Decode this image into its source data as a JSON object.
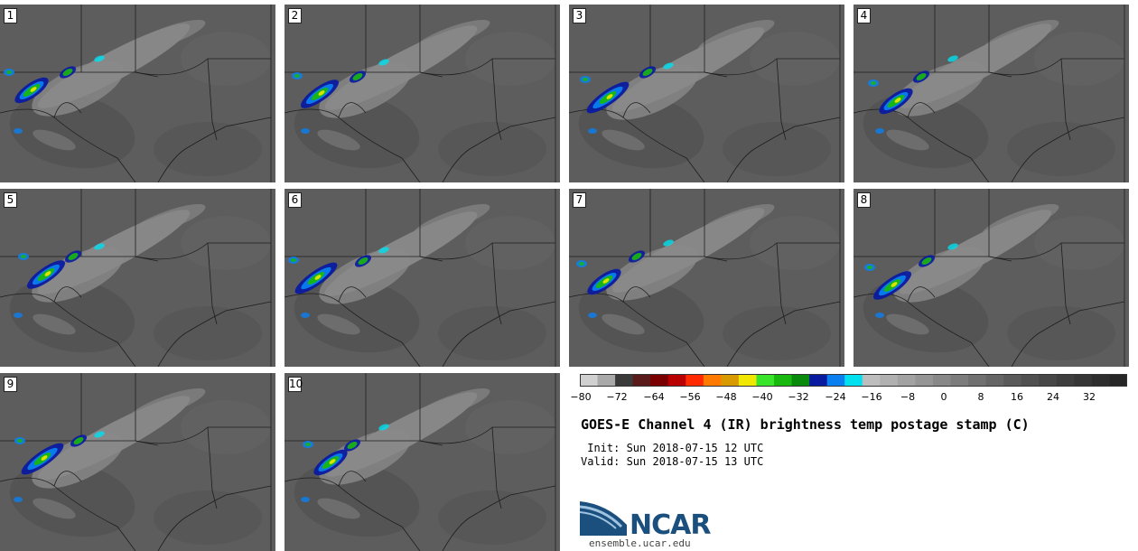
{
  "panels": [
    {
      "label": "1"
    },
    {
      "label": "2"
    },
    {
      "label": "3"
    },
    {
      "label": "4"
    },
    {
      "label": "5"
    },
    {
      "label": "6"
    },
    {
      "label": "7"
    },
    {
      "label": "8"
    },
    {
      "label": "9"
    },
    {
      "label": "10"
    }
  ],
  "colorbar": {
    "colors": [
      "#d0d0d0",
      "#a9a9a9",
      "#3a3a3a",
      "#5a1a1a",
      "#7a0000",
      "#b80000",
      "#ff2a00",
      "#ff7a00",
      "#d89a00",
      "#f0e800",
      "#39e52b",
      "#19b80f",
      "#0a8a0a",
      "#0a1aa0",
      "#0a80f0",
      "#00e0ee",
      "#bdbdbd",
      "#b0b0b0",
      "#a2a2a2",
      "#959595",
      "#888888",
      "#7c7c7c",
      "#707070",
      "#656565",
      "#5a5a5a",
      "#505050",
      "#474747",
      "#3e3e3e",
      "#363636",
      "#2e2e2e",
      "#262626"
    ],
    "ticks": [
      "−80",
      "−72",
      "−64",
      "−56",
      "−48",
      "−40",
      "−32",
      "−24",
      "−16",
      "−8",
      "0",
      "8",
      "16",
      "24",
      "32"
    ]
  },
  "title": "GOES-E Channel 4 (IR) brightness temp postage stamp (C)",
  "init_line": " Init: Sun 2018-07-15 12 UTC",
  "valid_line": "Valid: Sun 2018-07-15 13 UTC",
  "logo": {
    "wordmark": "NCAR",
    "url": "ensemble.ucar.edu",
    "colors": {
      "blue": "#1a4f7e",
      "light": "#9fc3e0"
    }
  }
}
